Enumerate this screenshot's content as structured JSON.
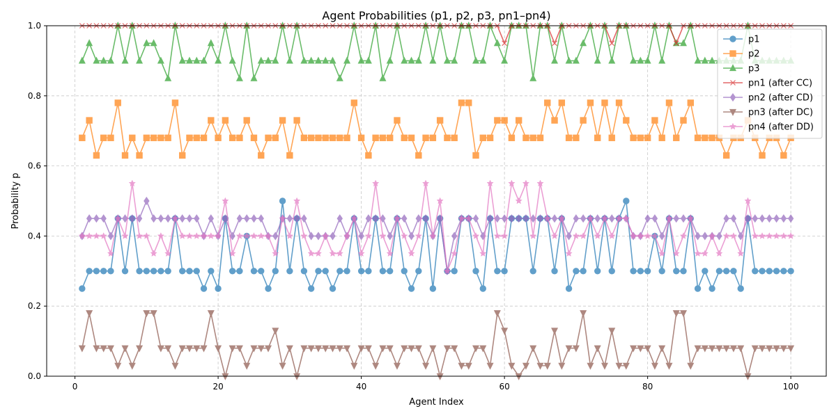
{
  "chart_data": {
    "type": "line",
    "title": "Agent Probabilities (p1, p2, p3, pn1–pn4)",
    "xlabel": "Agent Index",
    "ylabel": "Probability p",
    "xlim": [
      -3.95,
      104.95
    ],
    "ylim": [
      0.0,
      1.0
    ],
    "xticks": [
      0,
      20,
      40,
      60,
      80,
      100
    ],
    "yticks": [
      0.0,
      0.2,
      0.4,
      0.6,
      0.8,
      1.0
    ],
    "ytick_labels": [
      "0.0",
      "0.2",
      "0.4",
      "0.6",
      "0.8",
      "1.0"
    ],
    "grid": true,
    "grid_style": "dashed",
    "legend_position": "upper right",
    "x": [
      1,
      2,
      3,
      4,
      5,
      6,
      7,
      8,
      9,
      10,
      11,
      12,
      13,
      14,
      15,
      16,
      17,
      18,
      19,
      20,
      21,
      22,
      23,
      24,
      25,
      26,
      27,
      28,
      29,
      30,
      31,
      32,
      33,
      34,
      35,
      36,
      37,
      38,
      39,
      40,
      41,
      42,
      43,
      44,
      45,
      46,
      47,
      48,
      49,
      50,
      51,
      52,
      53,
      54,
      55,
      56,
      57,
      58,
      59,
      60,
      61,
      62,
      63,
      64,
      65,
      66,
      67,
      68,
      69,
      70,
      71,
      72,
      73,
      74,
      75,
      76,
      77,
      78,
      79,
      80,
      81,
      82,
      83,
      84,
      85,
      86,
      87,
      88,
      89,
      90,
      91,
      92,
      93,
      94,
      95,
      96,
      97,
      98,
      99,
      100
    ],
    "series": [
      {
        "name": "p1",
        "color": "#1f77b4",
        "marker": "circle",
        "values": [
          0.25,
          0.3,
          0.3,
          0.3,
          0.3,
          0.45,
          0.3,
          0.45,
          0.3,
          0.3,
          0.3,
          0.3,
          0.3,
          0.45,
          0.3,
          0.3,
          0.3,
          0.25,
          0.3,
          0.25,
          0.45,
          0.3,
          0.3,
          0.4,
          0.3,
          0.3,
          0.25,
          0.3,
          0.5,
          0.3,
          0.45,
          0.3,
          0.25,
          0.3,
          0.3,
          0.25,
          0.3,
          0.3,
          0.45,
          0.3,
          0.3,
          0.45,
          0.3,
          0.3,
          0.45,
          0.3,
          0.25,
          0.3,
          0.45,
          0.25,
          0.45,
          0.3,
          0.3,
          0.45,
          0.45,
          0.3,
          0.25,
          0.45,
          0.3,
          0.3,
          0.45,
          0.45,
          0.45,
          0.3,
          0.45,
          0.45,
          0.3,
          0.45,
          0.25,
          0.3,
          0.3,
          0.45,
          0.3,
          0.45,
          0.3,
          0.45,
          0.5,
          0.3,
          0.3,
          0.3,
          0.4,
          0.3,
          0.45,
          0.3,
          0.3,
          0.45,
          0.25,
          0.3,
          0.25,
          0.3,
          0.3,
          0.3,
          0.25,
          0.45,
          0.3,
          0.3,
          0.3,
          0.3,
          0.3,
          0.3
        ]
      },
      {
        "name": "p2",
        "color": "#ff7f0e",
        "marker": "square",
        "values": [
          0.68,
          0.73,
          0.63,
          0.68,
          0.68,
          0.78,
          0.63,
          0.68,
          0.63,
          0.68,
          0.68,
          0.68,
          0.68,
          0.78,
          0.63,
          0.68,
          0.68,
          0.68,
          0.73,
          0.68,
          0.73,
          0.68,
          0.68,
          0.73,
          0.68,
          0.63,
          0.68,
          0.68,
          0.73,
          0.63,
          0.73,
          0.68,
          0.68,
          0.68,
          0.68,
          0.68,
          0.68,
          0.68,
          0.78,
          0.68,
          0.63,
          0.68,
          0.68,
          0.68,
          0.73,
          0.68,
          0.68,
          0.63,
          0.68,
          0.68,
          0.73,
          0.68,
          0.68,
          0.78,
          0.78,
          0.63,
          0.68,
          0.68,
          0.73,
          0.73,
          0.68,
          0.73,
          0.68,
          0.68,
          0.68,
          0.78,
          0.73,
          0.78,
          0.68,
          0.68,
          0.73,
          0.78,
          0.68,
          0.78,
          0.68,
          0.78,
          0.73,
          0.68,
          0.68,
          0.68,
          0.73,
          0.68,
          0.78,
          0.68,
          0.73,
          0.78,
          0.68,
          0.68,
          0.68,
          0.68,
          0.63,
          0.68,
          0.68,
          0.73,
          0.68,
          0.63,
          0.68,
          0.68,
          0.63,
          0.68
        ]
      },
      {
        "name": "p3",
        "color": "#2ca02c",
        "marker": "triangle-up",
        "values": [
          0.9,
          0.95,
          0.9,
          0.9,
          0.9,
          1.0,
          0.9,
          1.0,
          0.9,
          0.95,
          0.95,
          0.9,
          0.85,
          1.0,
          0.9,
          0.9,
          0.9,
          0.9,
          0.95,
          0.9,
          1.0,
          0.9,
          0.85,
          1.0,
          0.85,
          0.9,
          0.9,
          0.9,
          1.0,
          0.9,
          1.0,
          0.9,
          0.9,
          0.9,
          0.9,
          0.9,
          0.85,
          0.9,
          1.0,
          0.9,
          0.9,
          1.0,
          0.85,
          0.9,
          1.0,
          0.9,
          0.9,
          0.9,
          1.0,
          0.9,
          1.0,
          0.9,
          0.9,
          1.0,
          1.0,
          0.9,
          0.9,
          1.0,
          0.95,
          0.9,
          1.0,
          1.0,
          1.0,
          0.85,
          1.0,
          1.0,
          0.9,
          1.0,
          0.9,
          0.9,
          0.95,
          1.0,
          0.9,
          1.0,
          0.9,
          1.0,
          1.0,
          0.9,
          0.9,
          0.9,
          1.0,
          0.9,
          1.0,
          0.95,
          0.95,
          1.0,
          0.9,
          0.9,
          0.9,
          0.9,
          0.9,
          0.9,
          0.9,
          1.0,
          0.9,
          0.9,
          0.9,
          0.9,
          0.9,
          0.9
        ]
      },
      {
        "name": "pn1 (after CC)",
        "color": "#d62728",
        "marker": "x",
        "values": [
          1.0,
          1.0,
          1.0,
          1.0,
          1.0,
          1.0,
          1.0,
          1.0,
          1.0,
          1.0,
          1.0,
          1.0,
          1.0,
          1.0,
          1.0,
          1.0,
          1.0,
          1.0,
          1.0,
          1.0,
          1.0,
          1.0,
          1.0,
          1.0,
          1.0,
          1.0,
          1.0,
          1.0,
          1.0,
          1.0,
          1.0,
          1.0,
          1.0,
          1.0,
          1.0,
          1.0,
          1.0,
          1.0,
          1.0,
          1.0,
          1.0,
          1.0,
          1.0,
          1.0,
          1.0,
          1.0,
          1.0,
          1.0,
          1.0,
          1.0,
          1.0,
          1.0,
          1.0,
          1.0,
          1.0,
          1.0,
          1.0,
          1.0,
          1.0,
          0.95,
          1.0,
          1.0,
          1.0,
          1.0,
          1.0,
          1.0,
          0.95,
          1.0,
          1.0,
          1.0,
          1.0,
          1.0,
          1.0,
          1.0,
          0.95,
          1.0,
          1.0,
          1.0,
          1.0,
          1.0,
          1.0,
          1.0,
          1.0,
          0.95,
          1.0,
          1.0,
          1.0,
          1.0,
          1.0,
          1.0,
          1.0,
          1.0,
          1.0,
          1.0,
          1.0,
          1.0,
          1.0,
          1.0,
          1.0,
          1.0
        ]
      },
      {
        "name": "pn2 (after CD)",
        "color": "#9467bd",
        "marker": "diamond",
        "values": [
          0.4,
          0.45,
          0.45,
          0.45,
          0.4,
          0.45,
          0.45,
          0.45,
          0.45,
          0.5,
          0.45,
          0.45,
          0.45,
          0.45,
          0.45,
          0.45,
          0.45,
          0.4,
          0.45,
          0.4,
          0.45,
          0.4,
          0.45,
          0.45,
          0.45,
          0.45,
          0.4,
          0.4,
          0.45,
          0.45,
          0.45,
          0.45,
          0.4,
          0.4,
          0.4,
          0.4,
          0.45,
          0.4,
          0.45,
          0.4,
          0.45,
          0.45,
          0.45,
          0.4,
          0.45,
          0.45,
          0.4,
          0.45,
          0.45,
          0.4,
          0.45,
          0.3,
          0.4,
          0.45,
          0.45,
          0.45,
          0.4,
          0.45,
          0.45,
          0.45,
          0.45,
          0.45,
          0.45,
          0.45,
          0.45,
          0.45,
          0.45,
          0.45,
          0.4,
          0.45,
          0.45,
          0.45,
          0.45,
          0.45,
          0.45,
          0.45,
          0.45,
          0.4,
          0.4,
          0.45,
          0.45,
          0.4,
          0.45,
          0.45,
          0.45,
          0.45,
          0.4,
          0.4,
          0.4,
          0.4,
          0.45,
          0.45,
          0.4,
          0.45,
          0.45,
          0.45,
          0.45,
          0.45,
          0.45,
          0.45
        ]
      },
      {
        "name": "pn3 (after DC)",
        "color": "#8c564b",
        "marker": "triangle-down",
        "values": [
          0.08,
          0.18,
          0.08,
          0.08,
          0.08,
          0.03,
          0.08,
          0.03,
          0.08,
          0.18,
          0.18,
          0.08,
          0.08,
          0.03,
          0.08,
          0.08,
          0.08,
          0.08,
          0.18,
          0.08,
          0.0,
          0.08,
          0.08,
          0.03,
          0.08,
          0.08,
          0.08,
          0.13,
          0.03,
          0.08,
          0.0,
          0.08,
          0.08,
          0.08,
          0.08,
          0.08,
          0.08,
          0.08,
          0.03,
          0.08,
          0.08,
          0.03,
          0.08,
          0.08,
          0.03,
          0.08,
          0.08,
          0.08,
          0.03,
          0.08,
          0.0,
          0.08,
          0.08,
          0.03,
          0.03,
          0.08,
          0.08,
          0.03,
          0.18,
          0.13,
          0.03,
          0.0,
          0.03,
          0.08,
          0.03,
          0.03,
          0.13,
          0.03,
          0.08,
          0.08,
          0.18,
          0.03,
          0.08,
          0.03,
          0.13,
          0.03,
          0.03,
          0.08,
          0.08,
          0.08,
          0.03,
          0.08,
          0.03,
          0.18,
          0.18,
          0.03,
          0.08,
          0.08,
          0.08,
          0.08,
          0.08,
          0.08,
          0.08,
          0.0,
          0.08,
          0.08,
          0.08,
          0.08,
          0.08,
          0.08
        ]
      },
      {
        "name": "pn4 (after DD)",
        "color": "#e377c2",
        "marker": "star",
        "values": [
          0.4,
          0.4,
          0.4,
          0.4,
          0.35,
          0.45,
          0.4,
          0.55,
          0.4,
          0.4,
          0.35,
          0.4,
          0.35,
          0.45,
          0.4,
          0.4,
          0.4,
          0.4,
          0.4,
          0.4,
          0.5,
          0.35,
          0.4,
          0.4,
          0.4,
          0.4,
          0.4,
          0.35,
          0.45,
          0.4,
          0.5,
          0.4,
          0.35,
          0.35,
          0.4,
          0.35,
          0.35,
          0.4,
          0.45,
          0.35,
          0.4,
          0.55,
          0.4,
          0.35,
          0.45,
          0.4,
          0.35,
          0.4,
          0.55,
          0.4,
          0.5,
          0.3,
          0.35,
          0.45,
          0.45,
          0.4,
          0.35,
          0.55,
          0.4,
          0.4,
          0.55,
          0.5,
          0.55,
          0.4,
          0.55,
          0.45,
          0.4,
          0.45,
          0.35,
          0.4,
          0.4,
          0.45,
          0.4,
          0.45,
          0.4,
          0.45,
          0.45,
          0.4,
          0.4,
          0.4,
          0.4,
          0.35,
          0.45,
          0.35,
          0.4,
          0.45,
          0.35,
          0.35,
          0.4,
          0.35,
          0.4,
          0.4,
          0.35,
          0.5,
          0.4,
          0.4,
          0.4,
          0.4,
          0.4,
          0.4
        ]
      }
    ]
  }
}
